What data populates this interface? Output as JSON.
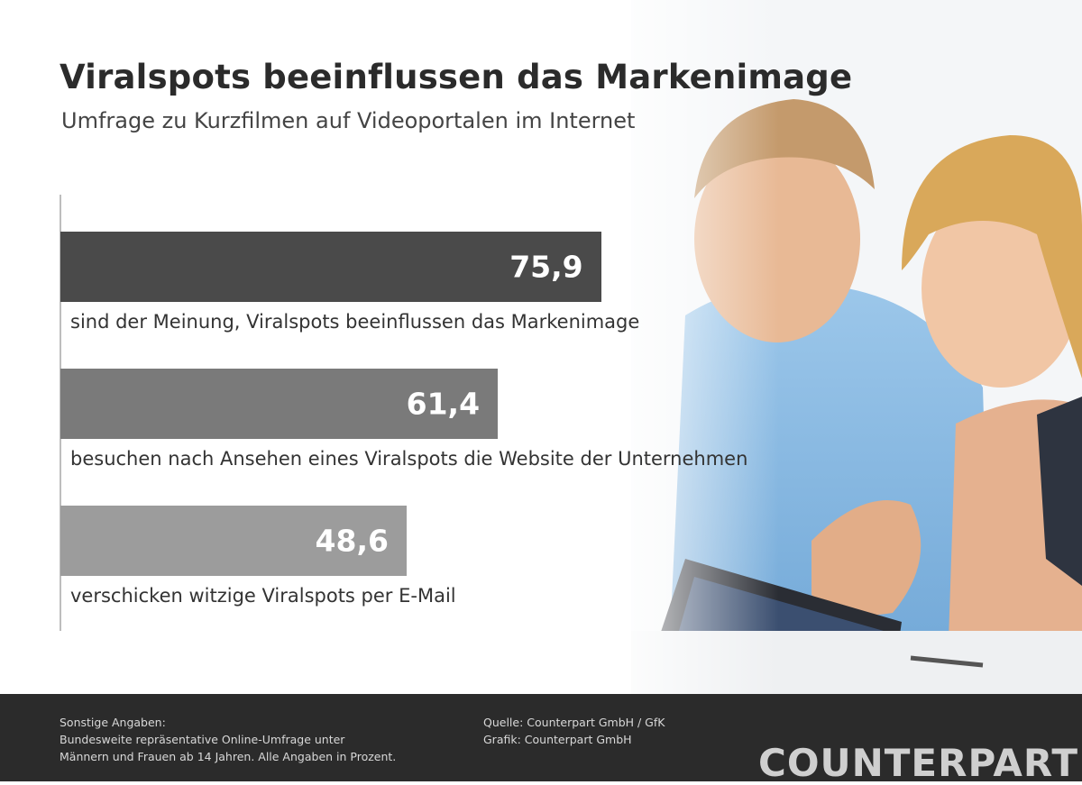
{
  "chart_data": {
    "type": "bar",
    "orientation": "horizontal",
    "title": "Viralspots beeinflussen das Markenimage",
    "subtitle": "Umfrage zu Kurzfilmen auf Videoportalen im Internet",
    "categories": [
      "sind der Meinung, Viralspots beeinflussen das Markenimage",
      "besuchen nach Ansehen eines Viralspots die Website der Unternehmen",
      "verschicken witzige Viralspots per E-Mail"
    ],
    "values": [
      75.9,
      61.4,
      48.6
    ],
    "value_labels": [
      "75,9",
      "61,4",
      "48,6"
    ],
    "xlim": [
      0,
      100
    ],
    "grid": false,
    "legend": "none",
    "bar_colors": [
      "#4a4a4a",
      "#7a7a7a",
      "#9c9c9c"
    ]
  },
  "footer": {
    "notes_heading": "Sonstige Angaben:",
    "notes_line1": "Bundesweite repräsentative Online-Umfrage unter",
    "notes_line2": "Männern und Frauen ab 14 Jahren. Alle Angaben in Prozent.",
    "source": "Quelle: Counterpart GmbH / GfK",
    "graphic": "Grafik: Counterpart GmbH",
    "logo": "COUNTERPART"
  },
  "photo": {
    "description_icon": "people-laptop-photo"
  },
  "colors": {
    "footer_bg": "#2b2b2b",
    "title": "#2b2b2b"
  }
}
